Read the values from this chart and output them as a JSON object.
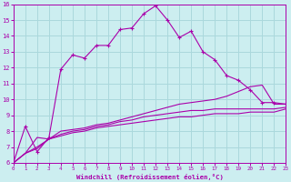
{
  "xlabel": "Windchill (Refroidissement éolien,°C)",
  "background_color": "#cceef0",
  "grid_color": "#aad8dc",
  "line_color": "#aa00aa",
  "x_values": [
    0,
    1,
    2,
    3,
    4,
    5,
    6,
    7,
    8,
    9,
    10,
    11,
    12,
    13,
    14,
    15,
    16,
    17,
    18,
    19,
    20,
    21,
    22,
    23
  ],
  "series1": [
    6.0,
    8.3,
    6.7,
    7.6,
    11.9,
    12.8,
    12.6,
    13.4,
    13.4,
    14.4,
    14.5,
    15.4,
    15.9,
    15.0,
    13.9,
    14.3,
    13.0,
    12.5,
    11.5,
    11.2,
    10.6,
    9.8,
    9.8,
    9.7
  ],
  "series2": [
    6.0,
    6.6,
    7.6,
    7.5,
    8.0,
    8.1,
    8.2,
    8.4,
    8.5,
    8.7,
    8.9,
    9.1,
    9.3,
    9.5,
    9.7,
    9.8,
    9.9,
    10.0,
    10.2,
    10.5,
    10.8,
    10.9,
    9.7,
    9.7
  ],
  "series3": [
    6.0,
    6.6,
    7.0,
    7.5,
    7.8,
    8.0,
    8.1,
    8.3,
    8.4,
    8.6,
    8.7,
    8.9,
    9.0,
    9.1,
    9.2,
    9.3,
    9.3,
    9.4,
    9.4,
    9.4,
    9.4,
    9.4,
    9.4,
    9.5
  ],
  "series4": [
    6.0,
    6.6,
    6.9,
    7.5,
    7.7,
    7.9,
    8.0,
    8.2,
    8.3,
    8.4,
    8.5,
    8.6,
    8.7,
    8.8,
    8.9,
    8.9,
    9.0,
    9.1,
    9.1,
    9.1,
    9.2,
    9.2,
    9.2,
    9.4
  ],
  "ylim": [
    6,
    16
  ],
  "xlim": [
    0,
    23
  ],
  "yticks": [
    6,
    7,
    8,
    9,
    10,
    11,
    12,
    13,
    14,
    15,
    16
  ],
  "xticks": [
    0,
    1,
    2,
    3,
    4,
    5,
    6,
    7,
    8,
    9,
    10,
    11,
    12,
    13,
    14,
    15,
    16,
    17,
    18,
    19,
    20,
    21,
    22,
    23
  ]
}
